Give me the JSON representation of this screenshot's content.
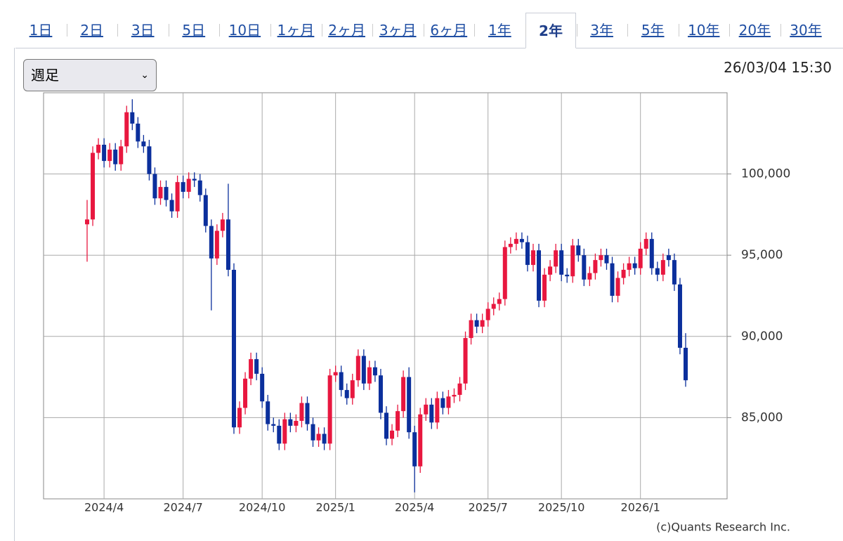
{
  "tabs": [
    {
      "label": "1日"
    },
    {
      "label": "2日"
    },
    {
      "label": "3日"
    },
    {
      "label": "5日"
    },
    {
      "label": "10日"
    },
    {
      "label": "1ヶ月"
    },
    {
      "label": "2ヶ月"
    },
    {
      "label": "3ヶ月"
    },
    {
      "label": "6ヶ月"
    },
    {
      "label": "1年"
    },
    {
      "label": "2年",
      "active": true
    },
    {
      "label": "3年"
    },
    {
      "label": "5年"
    },
    {
      "label": "10年"
    },
    {
      "label": "20年"
    },
    {
      "label": "30年"
    }
  ],
  "period_select": "週足",
  "timestamp": "26/03/04 15:30",
  "chart_data": {
    "type": "candlestick",
    "categories": [
      null,
      null,
      null,
      "2024/4",
      null,
      null,
      null,
      null,
      null,
      null,
      null,
      null,
      null,
      null,
      null,
      null,
      null,
      "2024/7",
      null,
      null,
      null,
      null,
      null,
      null,
      null,
      null,
      null,
      null,
      null,
      null,
      null,
      "2024/10",
      null,
      null,
      null,
      null,
      null,
      null,
      null,
      null,
      null,
      null,
      null,
      null,
      "2025/1",
      null,
      null,
      null,
      null,
      null,
      null,
      null,
      null,
      null,
      null,
      null,
      null,
      null,
      "2025/4",
      null,
      null,
      null,
      null,
      null,
      null,
      null,
      null,
      null,
      null,
      null,
      null,
      "2025/7",
      null,
      null,
      null,
      null,
      null,
      null,
      null,
      null,
      null,
      null,
      null,
      null,
      "2025/10",
      null,
      null,
      null,
      null,
      null,
      null,
      null,
      null,
      null,
      null,
      null,
      null,
      null,
      "2026/1",
      null,
      null,
      null,
      null,
      null,
      null,
      null,
      null
    ],
    "open": [
      96900,
      97200,
      101300,
      101800,
      100800,
      101500,
      100600,
      101700,
      103800,
      103100,
      102000,
      101700,
      100000,
      98500,
      99200,
      98400,
      97700,
      99500,
      98900,
      99700,
      99600,
      98700,
      96800,
      94800,
      96500,
      97200,
      94100,
      84400,
      85600,
      87400,
      88600,
      87700,
      86000,
      84600,
      84500,
      83400,
      84900,
      84500,
      84800,
      85900,
      84600,
      83600,
      84000,
      83400,
      87600,
      87800,
      86700,
      86200,
      87300,
      88800,
      87100,
      88100,
      87600,
      85300,
      83700,
      84200,
      85400,
      87500,
      84100,
      82000,
      85200,
      85800,
      84700,
      86200,
      85600,
      86300,
      86400,
      87100,
      89900,
      91000,
      90600,
      91000,
      91700,
      92000,
      92300,
      95500,
      95700,
      96000,
      95800,
      94400,
      95300,
      92200,
      93800,
      94300,
      95300,
      93800,
      93700,
      95600,
      95000,
      93500,
      93900,
      94700,
      95000,
      94500,
      92500,
      93600,
      94100,
      94500,
      94200,
      95400,
      96000,
      94200,
      93800,
      95000,
      94700,
      93200,
      89300
    ],
    "high": [
      98400,
      101700,
      102200,
      102200,
      101900,
      101900,
      102100,
      104200,
      104600,
      103500,
      102400,
      102100,
      100400,
      99600,
      99600,
      98800,
      99900,
      99900,
      100100,
      100100,
      100000,
      99100,
      97200,
      96900,
      97600,
      99400,
      94500,
      86000,
      87800,
      89000,
      89000,
      88100,
      86400,
      85000,
      84900,
      85300,
      85300,
      85200,
      86300,
      86300,
      85000,
      84400,
      84400,
      88000,
      88200,
      88200,
      87100,
      87700,
      89200,
      89200,
      88500,
      88500,
      88000,
      85700,
      84600,
      85800,
      87900,
      88100,
      84500,
      85600,
      86200,
      86200,
      86600,
      86600,
      86700,
      86800,
      87500,
      90300,
      91400,
      91400,
      91400,
      92100,
      92400,
      92700,
      95900,
      96100,
      96400,
      96400,
      96200,
      95700,
      95700,
      94200,
      94700,
      95700,
      95700,
      94200,
      96000,
      96000,
      95400,
      94300,
      95100,
      95400,
      95400,
      94900,
      94000,
      94500,
      94900,
      94900,
      95800,
      96400,
      96400,
      94600,
      95100,
      95400,
      95100,
      93600,
      90200
    ],
    "low": [
      94600,
      96800,
      100900,
      100400,
      100400,
      100200,
      100200,
      101300,
      102700,
      101600,
      101300,
      99600,
      98100,
      98100,
      98000,
      97300,
      97300,
      98500,
      98500,
      99200,
      98300,
      96400,
      91600,
      94400,
      96100,
      93700,
      84000,
      84000,
      85200,
      87000,
      87300,
      85600,
      84200,
      84100,
      83000,
      83000,
      84100,
      84100,
      84400,
      84200,
      83200,
      83200,
      83000,
      83000,
      87200,
      86300,
      85800,
      85800,
      86900,
      86700,
      86700,
      87200,
      84900,
      83300,
      83300,
      83800,
      85000,
      83700,
      80400,
      81600,
      84800,
      84300,
      84300,
      85200,
      85200,
      85900,
      86000,
      86700,
      89500,
      90200,
      90200,
      90600,
      91300,
      91600,
      91900,
      95100,
      95300,
      95400,
      94000,
      94000,
      91800,
      91800,
      93400,
      93900,
      93400,
      93300,
      93300,
      94600,
      93100,
      93100,
      93500,
      94300,
      94100,
      92100,
      92100,
      93200,
      93700,
      93800,
      93800,
      95000,
      93800,
      93400,
      93400,
      94300,
      92800,
      88900,
      86900
    ],
    "close": [
      97200,
      101300,
      101800,
      100800,
      101500,
      100600,
      101700,
      103800,
      103100,
      102000,
      101700,
      100000,
      98500,
      99200,
      98400,
      97700,
      99500,
      98900,
      99700,
      99600,
      98700,
      96800,
      94800,
      96500,
      97200,
      94100,
      84400,
      85600,
      87400,
      88600,
      87700,
      86000,
      84600,
      84500,
      83400,
      84900,
      84500,
      84800,
      85900,
      84600,
      83600,
      84000,
      83400,
      87600,
      87800,
      86700,
      86200,
      87300,
      88800,
      87100,
      88100,
      87600,
      85300,
      83700,
      84200,
      85400,
      87500,
      84100,
      82000,
      85200,
      85800,
      84700,
      86200,
      85600,
      86300,
      86400,
      87100,
      89900,
      91000,
      90600,
      91000,
      91700,
      92000,
      92300,
      95500,
      95700,
      96000,
      95800,
      94400,
      95300,
      92200,
      93800,
      94300,
      95300,
      93800,
      93700,
      95600,
      95000,
      93500,
      93900,
      94700,
      95000,
      94500,
      92500,
      93600,
      94100,
      94500,
      94200,
      95400,
      96000,
      94200,
      93800,
      94700,
      94700,
      93200,
      89300,
      87300
    ],
    "up_color": "#e8173f",
    "down_color": "#0b2f9c",
    "ylim": [
      80000,
      105000
    ],
    "yticks": [
      {
        "value": 85000,
        "label": "85,000"
      },
      {
        "value": 90000,
        "label": "90,000"
      },
      {
        "value": 95000,
        "label": "95,000"
      },
      {
        "value": 100000,
        "label": "100,000"
      }
    ],
    "grid": true,
    "credit": "(c)Quants Research Inc."
  }
}
